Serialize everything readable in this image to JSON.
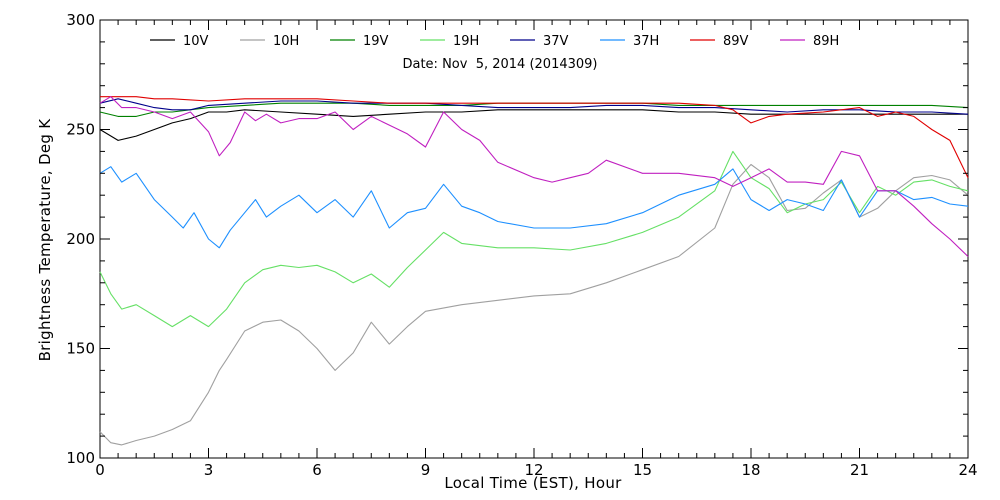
{
  "chart_data": {
    "type": "line",
    "title": "",
    "subtitle": "Date: Nov  5, 2014 (2014309)",
    "xlabel": "Local Time (EST), Hour",
    "ylabel": "Brightness Temperature, Deg K",
    "xlim": [
      0,
      24
    ],
    "ylim": [
      100,
      300
    ],
    "xticks": [
      0,
      3,
      6,
      9,
      12,
      15,
      18,
      21,
      24
    ],
    "yticks": [
      100,
      150,
      200,
      250,
      300
    ],
    "grid": false,
    "legend_position": "top",
    "series": [
      {
        "name": "10V",
        "color": "#000000",
        "x": [
          0,
          0.5,
          1,
          1.5,
          2,
          2.5,
          3,
          3.5,
          4,
          5,
          6,
          7,
          8,
          9,
          10,
          11,
          12,
          13,
          14,
          15,
          16,
          17,
          18,
          19,
          20,
          21,
          22,
          23,
          24
        ],
        "y": [
          250,
          245,
          247,
          250,
          253,
          255,
          258,
          258,
          259,
          258,
          257,
          256,
          257,
          258,
          258,
          259,
          259,
          259,
          259,
          259,
          258,
          258,
          257,
          257,
          257,
          257,
          257,
          257,
          257
        ]
      },
      {
        "name": "10H",
        "color": "#a0a0a0",
        "x": [
          0,
          0.3,
          0.6,
          1,
          1.5,
          2,
          2.5,
          3,
          3.3,
          3.5,
          4,
          4.5,
          5,
          5.5,
          6,
          6.5,
          7,
          7.5,
          8,
          8.5,
          9,
          10,
          11,
          12,
          13,
          14,
          15,
          16,
          17,
          17.5,
          18,
          18.5,
          19,
          19.5,
          20,
          20.5,
          21,
          21.5,
          22,
          22.5,
          23,
          23.5,
          24
        ],
        "y": [
          112,
          107,
          106,
          108,
          110,
          113,
          117,
          130,
          140,
          145,
          158,
          162,
          163,
          158,
          150,
          140,
          148,
          162,
          152,
          160,
          167,
          170,
          172,
          174,
          175,
          180,
          186,
          192,
          205,
          225,
          234,
          228,
          213,
          214,
          221,
          227,
          210,
          214,
          222,
          228,
          229,
          227,
          220
        ]
      },
      {
        "name": "19V",
        "color": "#008000",
        "x": [
          0,
          0.5,
          1,
          1.5,
          2,
          3,
          4,
          5,
          6,
          7,
          8,
          9,
          10,
          11,
          12,
          13,
          14,
          15,
          16,
          17,
          18,
          19,
          20,
          21,
          22,
          23,
          24
        ],
        "y": [
          258,
          256,
          256,
          258,
          258,
          260,
          261,
          262,
          262,
          262,
          261,
          261,
          261,
          262,
          262,
          262,
          262,
          262,
          261,
          261,
          261,
          261,
          261,
          261,
          261,
          261,
          260
        ]
      },
      {
        "name": "19H",
        "color": "#66e066",
        "x": [
          0,
          0.3,
          0.6,
          1,
          1.5,
          2,
          2.5,
          3,
          3.5,
          4,
          4.5,
          5,
          5.5,
          6,
          6.5,
          7,
          7.5,
          8,
          8.5,
          9,
          9.5,
          10,
          11,
          12,
          13,
          14,
          15,
          16,
          17,
          17.5,
          18,
          18.5,
          19,
          19.5,
          20,
          20.5,
          21,
          21.5,
          22,
          22.5,
          23,
          23.5,
          24
        ],
        "y": [
          185,
          175,
          168,
          170,
          165,
          160,
          165,
          160,
          168,
          180,
          186,
          188,
          187,
          188,
          185,
          180,
          184,
          178,
          187,
          195,
          203,
          198,
          196,
          196,
          195,
          198,
          203,
          210,
          222,
          240,
          228,
          223,
          212,
          216,
          218,
          226,
          212,
          224,
          220,
          226,
          227,
          224,
          222
        ]
      },
      {
        "name": "37V",
        "color": "#00008b",
        "x": [
          0,
          0.5,
          1,
          1.5,
          2,
          2.5,
          3,
          4,
          5,
          6,
          7,
          8,
          9,
          10,
          11,
          12,
          13,
          14,
          15,
          16,
          17,
          18,
          19,
          20,
          21,
          22,
          23,
          24
        ],
        "y": [
          262,
          264,
          262,
          260,
          259,
          259,
          261,
          262,
          263,
          263,
          262,
          262,
          262,
          261,
          260,
          260,
          260,
          261,
          261,
          260,
          260,
          259,
          258,
          259,
          259,
          258,
          258,
          257
        ]
      },
      {
        "name": "37H",
        "color": "#1e90ff",
        "x": [
          0,
          0.3,
          0.6,
          1,
          1.5,
          2,
          2.3,
          2.6,
          3,
          3.3,
          3.6,
          4,
          4.3,
          4.6,
          5,
          5.5,
          6,
          6.5,
          7,
          7.5,
          8,
          8.5,
          9,
          9.5,
          10,
          10.5,
          11,
          12,
          13,
          14,
          15,
          16,
          17,
          17.5,
          18,
          18.5,
          19,
          19.5,
          20,
          20.5,
          21,
          21.5,
          22,
          22.5,
          23,
          23.5,
          24
        ],
        "y": [
          230,
          233,
          226,
          230,
          218,
          210,
          205,
          212,
          200,
          196,
          204,
          212,
          218,
          210,
          215,
          220,
          212,
          218,
          210,
          222,
          205,
          212,
          214,
          225,
          215,
          212,
          208,
          205,
          205,
          207,
          212,
          220,
          225,
          232,
          218,
          213,
          218,
          216,
          213,
          227,
          210,
          222,
          222,
          218,
          219,
          216,
          215
        ]
      },
      {
        "name": "89V",
        "color": "#e00000",
        "x": [
          0,
          0.5,
          1,
          1.5,
          2,
          3,
          4,
          5,
          6,
          7,
          8,
          9,
          10,
          11,
          12,
          13,
          14,
          15,
          16,
          17,
          17.5,
          18,
          18.5,
          19,
          20,
          21,
          21.5,
          22,
          22.5,
          23,
          23.5,
          24
        ],
        "y": [
          265,
          265,
          265,
          264,
          264,
          263,
          264,
          264,
          264,
          263,
          262,
          262,
          262,
          262,
          262,
          262,
          262,
          262,
          262,
          261,
          259,
          253,
          256,
          257,
          258,
          260,
          256,
          258,
          256,
          250,
          245,
          228
        ]
      },
      {
        "name": "89H",
        "color": "#c020c0",
        "x": [
          0,
          0.3,
          0.6,
          1,
          1.5,
          2,
          2.5,
          3,
          3.3,
          3.6,
          4,
          4.3,
          4.6,
          5,
          5.5,
          6,
          6.5,
          7,
          7.5,
          8,
          8.5,
          9,
          9.5,
          10,
          10.5,
          11,
          12,
          12.5,
          13,
          13.5,
          14,
          15,
          16,
          17,
          17.5,
          18,
          18.5,
          19,
          19.5,
          20,
          20.5,
          21,
          21.5,
          22,
          22.5,
          23,
          23.5,
          24
        ],
        "y": [
          262,
          265,
          260,
          260,
          258,
          255,
          258,
          249,
          238,
          244,
          258,
          254,
          257,
          253,
          255,
          255,
          258,
          250,
          256,
          252,
          248,
          242,
          258,
          250,
          245,
          235,
          228,
          226,
          228,
          230,
          236,
          230,
          230,
          228,
          224,
          228,
          232,
          226,
          226,
          225,
          240,
          238,
          222,
          222,
          215,
          207,
          200,
          192
        ]
      }
    ]
  }
}
